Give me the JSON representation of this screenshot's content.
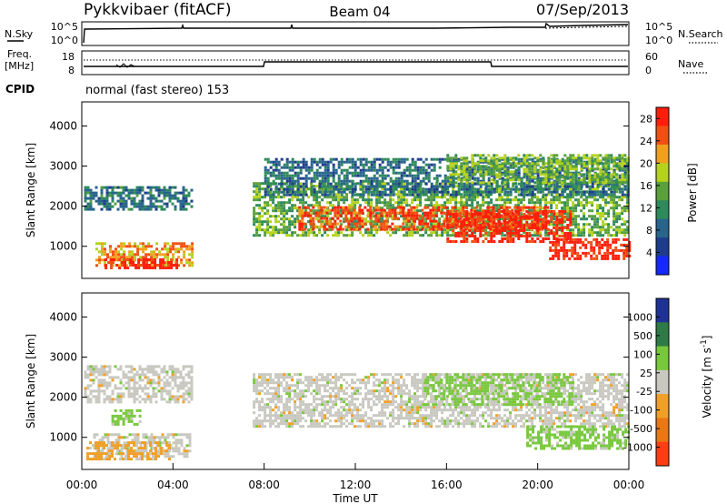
{
  "header": {
    "station": "Pykkvibaer (fitACF)",
    "beam": "Beam 04",
    "date": "07/Sep/2013"
  },
  "side_labels": {
    "nsky": "N.Sky",
    "nsearch": "N.Search",
    "freq_line1": "Freq.",
    "freq_line2": "[MHz]",
    "nave": "Nave",
    "cpid": "CPID",
    "cpid_value": "normal (fast stereo) 153"
  },
  "noise_panel": {
    "left_ticks": [
      "10^5",
      "10^0"
    ],
    "right_ticks": [
      "10^5",
      "10^0"
    ]
  },
  "freq_panel": {
    "left_ticks": [
      "18",
      "8"
    ],
    "right_ticks": [
      "60",
      "0"
    ]
  },
  "colors": {
    "power": [
      "#1428ff",
      "#1e3c8c",
      "#28648c",
      "#2e8a5a",
      "#5aa03c",
      "#b4d21e",
      "#f0a01e",
      "#f05014",
      "#ff1e0a"
    ],
    "velocity": [
      "#1e3296",
      "#2e7a46",
      "#78c83c",
      "#c8c8c0",
      "#f0a028",
      "#e87814",
      "#ff3c14"
    ]
  },
  "chart_data": [
    {
      "type": "heatmap",
      "panel": "power",
      "ylabel": "Slant Range [km]",
      "xlabel": "",
      "yticks": [
        "1000",
        "2000",
        "3000",
        "4000"
      ],
      "ylim": [
        200,
        4600
      ],
      "xlim_hours": [
        0,
        24
      ],
      "colorbar": {
        "label": "Power [dB]",
        "ticks": [
          "4",
          "8",
          "12",
          "16",
          "20",
          "24",
          "28"
        ],
        "range": [
          0,
          30
        ]
      },
      "bands": [
        {
          "t0": 0.1,
          "t1": 4.8,
          "r0": 1900,
          "r1": 2500,
          "value": 10
        },
        {
          "t0": 0.6,
          "t1": 4.8,
          "r0": 550,
          "r1": 1100,
          "value": 22
        },
        {
          "t0": 1.0,
          "t1": 4.2,
          "r0": 450,
          "r1": 700,
          "value": 29
        },
        {
          "t0": 7.5,
          "t1": 24,
          "r0": 1250,
          "r1": 2600,
          "value": 15
        },
        {
          "t0": 9.5,
          "t1": 20.5,
          "r0": 1400,
          "r1": 2000,
          "value": 26
        },
        {
          "t0": 16.0,
          "t1": 21.5,
          "r0": 1100,
          "r1": 1900,
          "value": 28
        },
        {
          "t0": 20.5,
          "t1": 24,
          "r0": 700,
          "r1": 1200,
          "value": 28
        },
        {
          "t0": 8.0,
          "t1": 24,
          "r0": 2300,
          "r1": 3200,
          "value": 9
        },
        {
          "t0": 16.0,
          "t1": 24,
          "r0": 2600,
          "r1": 3300,
          "value": 16
        }
      ]
    },
    {
      "type": "heatmap",
      "panel": "velocity",
      "ylabel": "Slant Range [km]",
      "xlabel": "Time UT",
      "yticks": [
        "1000",
        "2000",
        "3000",
        "4000"
      ],
      "ylim": [
        200,
        4600
      ],
      "xticks": [
        "00:00",
        "04:00",
        "08:00",
        "12:00",
        "16:00",
        "20:00",
        "00:00"
      ],
      "xlim_hours": [
        0,
        24
      ],
      "colorbar": {
        "label": "Velocity [m s^-1]",
        "ticks": [
          "1000",
          "500",
          "100",
          "25",
          "-25",
          "-100",
          "-500",
          "-1000"
        ],
        "range": [
          -1200,
          1200
        ]
      },
      "bands": [
        {
          "t0": 0.1,
          "t1": 4.8,
          "r0": 1900,
          "r1": 2800,
          "value": 0
        },
        {
          "t0": 0.5,
          "t1": 4.8,
          "r0": 550,
          "r1": 1100,
          "value": 0
        },
        {
          "t0": 0.2,
          "t1": 3.8,
          "r0": 450,
          "r1": 900,
          "value": -300
        },
        {
          "t0": 7.5,
          "t1": 24,
          "r0": 1250,
          "r1": 2600,
          "value": 0
        },
        {
          "t0": 15.0,
          "t1": 21.5,
          "r0": 1800,
          "r1": 2600,
          "value": 300
        },
        {
          "t0": 19.5,
          "t1": 24,
          "r0": 700,
          "r1": 1300,
          "value": 300
        },
        {
          "t0": 1.3,
          "t1": 2.5,
          "r0": 1300,
          "r1": 1700,
          "value": 300
        }
      ]
    }
  ]
}
